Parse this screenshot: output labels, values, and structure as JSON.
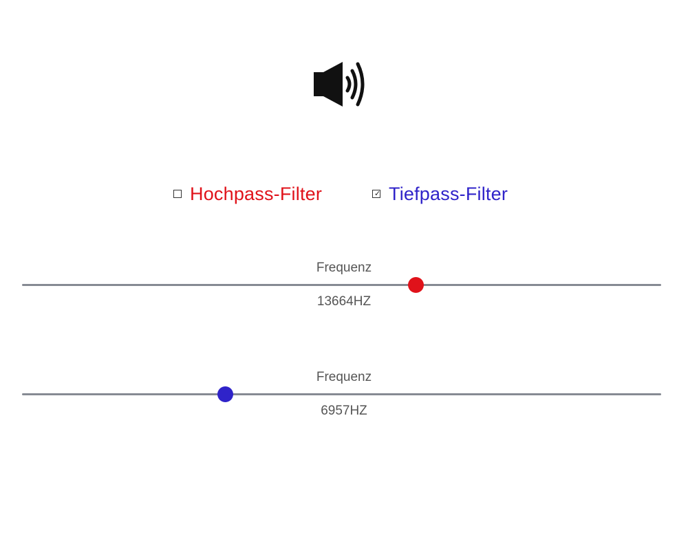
{
  "speaker": {
    "icon": "speaker-volume-icon"
  },
  "filters": {
    "highpass": {
      "label": "Hochpass-Filter",
      "checked": false,
      "color": "#e0121a"
    },
    "lowpass": {
      "label": "Tiefpass-Filter",
      "checked": true,
      "color": "#2f23c9"
    }
  },
  "sliders": [
    {
      "title": "Frequenz",
      "value_text": "13664HZ",
      "level": 0.616,
      "thumb_color": "#e0121a"
    },
    {
      "title": "Frequenz",
      "value_text": "6957HZ",
      "level": 0.318,
      "thumb_color": "#2f23c9"
    }
  ]
}
